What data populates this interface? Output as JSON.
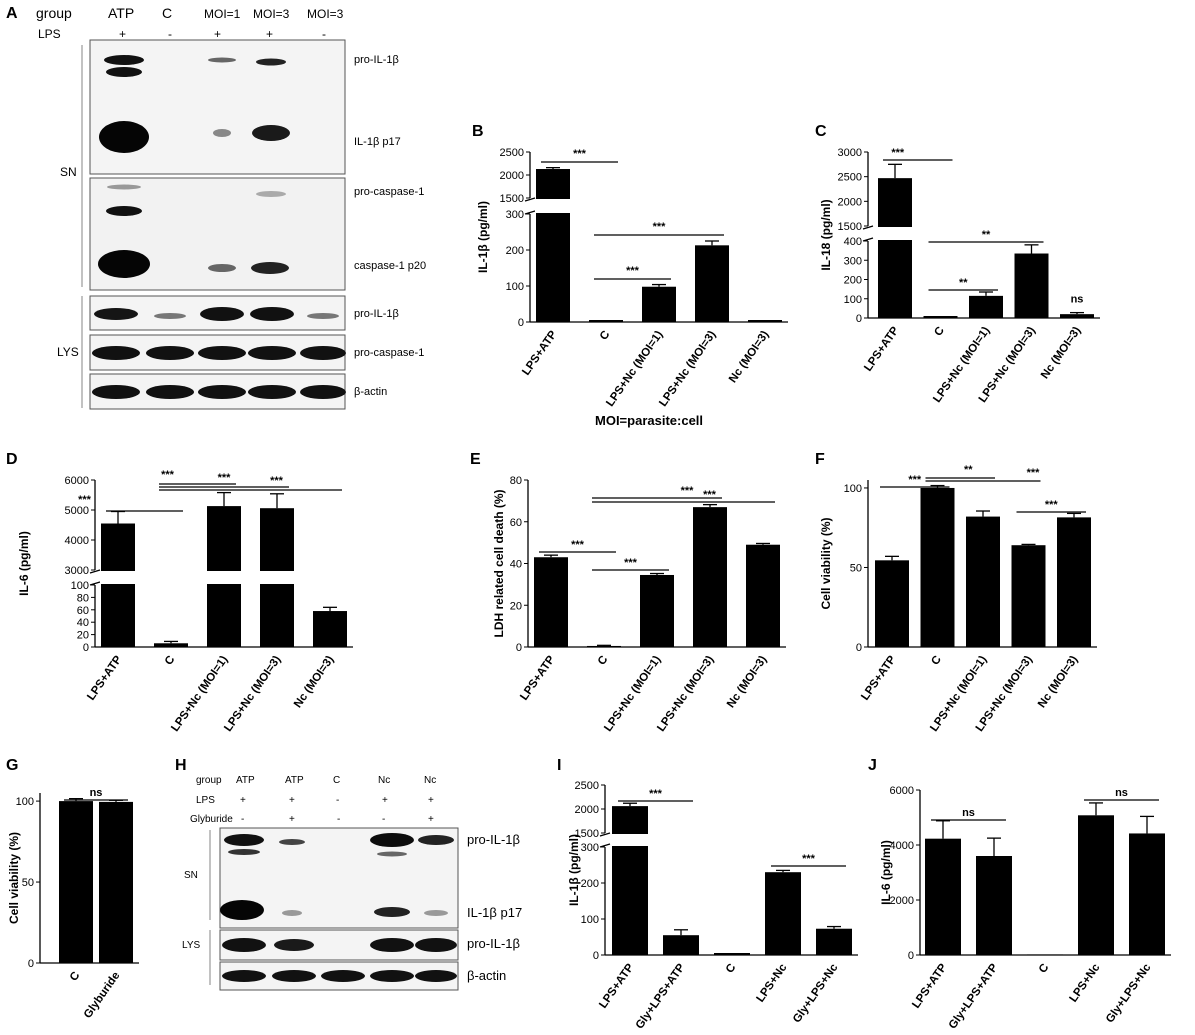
{
  "panel_letters": [
    "A",
    "B",
    "C",
    "D",
    "E",
    "F",
    "G",
    "H",
    "I",
    "J"
  ],
  "footer_note": "MOI=parasite:cell",
  "blot_A": {
    "header_rows": [
      {
        "label": "group",
        "cells": [
          "ATP",
          "C",
          "MOI=1",
          "MOI=3",
          "MOI=3"
        ]
      },
      {
        "label": "LPS",
        "cells": [
          "+",
          "-",
          "+",
          "+",
          "-"
        ]
      }
    ],
    "groups": [
      "SN",
      "LYS"
    ],
    "band_labels": [
      "pro-IL-1β",
      "IL-1β p17",
      "pro-caspase-1",
      "caspase-1 p20",
      "pro-IL-1β",
      "pro-caspase-1",
      "β-actin"
    ]
  },
  "blot_H": {
    "header_rows": [
      {
        "label": "group",
        "cells": [
          "ATP",
          "ATP",
          "C",
          "Nc",
          "Nc"
        ]
      },
      {
        "label": "LPS",
        "cells": [
          "+",
          "+",
          "-",
          "+",
          "+"
        ]
      },
      {
        "label": "Glyburide",
        "cells": [
          "-",
          "+",
          "-",
          "-",
          "+"
        ]
      }
    ],
    "groups": [
      "SN",
      "LYS"
    ],
    "band_labels": [
      "pro-IL-1β",
      "IL-1β p17",
      "pro-IL-1β",
      "β-actin"
    ]
  },
  "chart_data": [
    {
      "panel": "B",
      "type": "bar",
      "ylabel": "IL-1β (pg/ml)",
      "categories": [
        "LPS+ATP",
        "C",
        "LPS+Nc (MOI=1)",
        "LPS+Nc (MOI=3)",
        "Nc (MOI=3)"
      ],
      "values": [
        2130,
        0,
        98,
        213,
        0
      ],
      "errors": [
        30,
        0,
        6,
        12,
        0
      ],
      "axis": {
        "lower": [
          0,
          300
        ],
        "upper": [
          1500,
          2500
        ],
        "lower_ticks": [
          "0",
          "100",
          "200",
          "300"
        ],
        "upper_ticks": [
          "1500",
          "2000",
          "2500"
        ],
        "lower_tick_values": [
          0,
          100,
          200,
          300
        ],
        "upper_tick_values": [
          1500,
          2000,
          2500
        ]
      },
      "significance": [
        {
          "from": 0,
          "to": 1,
          "label": "***"
        },
        {
          "from": 1,
          "to": 3,
          "label": "***"
        },
        {
          "from": 1,
          "to": 2,
          "label": "***"
        }
      ]
    },
    {
      "panel": "C",
      "type": "bar",
      "ylabel": "IL-18 (pg/ml)",
      "categories": [
        "LPS+ATP",
        "C",
        "LPS+Nc (MOI=1)",
        "LPS+Nc (MOI=3)",
        "Nc (MOI=3)"
      ],
      "values": [
        2470,
        0,
        115,
        335,
        20
      ],
      "errors": [
        280,
        0,
        20,
        45,
        8
      ],
      "axis": {
        "lower": [
          0,
          400
        ],
        "upper": [
          1500,
          3000
        ],
        "lower_ticks": [
          "0",
          "100",
          "200",
          "300",
          "400"
        ],
        "upper_ticks": [
          "1500",
          "2000",
          "2500",
          "3000"
        ],
        "lower_tick_values": [
          0,
          100,
          200,
          300,
          400
        ],
        "upper_tick_values": [
          1500,
          2000,
          2500,
          3000
        ]
      },
      "significance": [
        {
          "from": 0,
          "to": 1,
          "label": "***"
        },
        {
          "from": 1,
          "to": 3,
          "label": "**"
        },
        {
          "from": 1,
          "to": 2,
          "label": "**"
        },
        {
          "single": 4,
          "label": "ns"
        }
      ]
    },
    {
      "panel": "D",
      "type": "bar",
      "ylabel": "IL-6 (pg/ml)",
      "categories": [
        "LPS+ATP",
        "C",
        "LPS+Nc (MOI=1)",
        "LPS+Nc (MOI=3)",
        "Nc (MOI=3)"
      ],
      "values": [
        4550,
        6,
        5130,
        5060,
        58
      ],
      "errors": [
        400,
        3,
        450,
        480,
        6
      ],
      "axis": {
        "lower": [
          0,
          100
        ],
        "upper": [
          3000,
          6000
        ],
        "lower_ticks": [
          "0",
          "20",
          "40",
          "60",
          "80",
          "100"
        ],
        "upper_ticks": [
          "3000",
          "4000",
          "5000",
          "6000"
        ],
        "lower_tick_values": [
          0,
          20,
          40,
          60,
          80,
          100
        ],
        "upper_tick_values": [
          3000,
          4000,
          5000,
          6000
        ]
      },
      "significance": [
        {
          "from": 0,
          "to": 1,
          "label": "***"
        },
        {
          "from": 1,
          "to": 2,
          "label": "***"
        },
        {
          "from": 1,
          "to": 3,
          "label": "***"
        },
        {
          "from": 1,
          "to": 4,
          "label": "***"
        }
      ]
    },
    {
      "panel": "E",
      "type": "bar",
      "ylabel": "LDH related cell death (%)",
      "categories": [
        "LPS+ATP",
        "C",
        "LPS+Nc (MOI=1)",
        "LPS+Nc (MOI=3)",
        "Nc (MOI=3)"
      ],
      "values": [
        43,
        0.5,
        34.5,
        67,
        49
      ],
      "errors": [
        1,
        0.3,
        0.7,
        1.2,
        0.6
      ],
      "ylim": [
        0,
        80
      ],
      "ticks": [
        "0",
        "20",
        "40",
        "60",
        "80"
      ],
      "tick_values": [
        0,
        20,
        40,
        60,
        80
      ],
      "significance": [
        {
          "from": 0,
          "to": 1,
          "label": "***"
        },
        {
          "from": 1,
          "to": 2,
          "label": "***"
        },
        {
          "from": 1,
          "to": 3,
          "label": "***"
        },
        {
          "from": 1,
          "to": 4,
          "label": "***"
        }
      ]
    },
    {
      "panel": "F",
      "type": "bar",
      "ylabel": "Cell viability (%)",
      "categories": [
        "LPS+ATP",
        "C",
        "LPS+Nc (MOI=1)",
        "LPS+Nc (MOI=3)",
        "Nc (MOI=3)"
      ],
      "values": [
        54.5,
        100,
        82,
        64,
        81.5
      ],
      "errors": [
        2.5,
        1.5,
        3.5,
        0.5,
        2.5
      ],
      "ylim": [
        0,
        105
      ],
      "ticks": [
        "0",
        "50",
        "100"
      ],
      "tick_values": [
        0,
        50,
        100
      ],
      "significance": [
        {
          "from": 0,
          "to": 1,
          "label": "***"
        },
        {
          "from": 1,
          "to": 2,
          "label": "**"
        },
        {
          "from": 1,
          "to": 3,
          "label": "***"
        },
        {
          "from": 3,
          "to": 4,
          "label": "***"
        }
      ]
    },
    {
      "panel": "G",
      "type": "bar",
      "ylabel": "Cell viability (%)",
      "categories": [
        "C",
        "Glyburide"
      ],
      "values": [
        100,
        99.5
      ],
      "errors": [
        1.5,
        1
      ],
      "ylim": [
        0,
        105
      ],
      "ticks": [
        "0",
        "50",
        "100"
      ],
      "tick_values": [
        0,
        50,
        100
      ],
      "significance": [
        {
          "from": 0,
          "to": 1,
          "label": "ns"
        }
      ]
    },
    {
      "panel": "I",
      "type": "bar",
      "ylabel": "IL-1β (pg/ml)",
      "categories": [
        "LPS+ATP",
        "Gly+LPS+ATP",
        "C",
        "LPS+Nc",
        "Gly+LPS+Nc"
      ],
      "values": [
        2060,
        55,
        0,
        230,
        73
      ],
      "errors": [
        60,
        15,
        0,
        5,
        6
      ],
      "axis": {
        "lower": [
          0,
          300
        ],
        "upper": [
          1500,
          2500
        ],
        "lower_ticks": [
          "0",
          "100",
          "200",
          "300"
        ],
        "upper_ticks": [
          "1500",
          "2000",
          "2500"
        ],
        "lower_tick_values": [
          0,
          100,
          200,
          300
        ],
        "upper_tick_values": [
          1500,
          2000,
          2500
        ]
      },
      "significance": [
        {
          "from": 0,
          "to": 1,
          "label": "***"
        },
        {
          "from": 3,
          "to": 4,
          "label": "***"
        }
      ]
    },
    {
      "panel": "J",
      "type": "bar",
      "ylabel": "IL-6 (pg/ml)",
      "categories": [
        "LPS+ATP",
        "Gly+LPS+ATP",
        "C",
        "LPS+Nc",
        "Gly+LPS+Nc"
      ],
      "values": [
        4230,
        3600,
        20,
        5080,
        4420
      ],
      "errors": [
        650,
        650,
        0,
        450,
        620
      ],
      "ylim": [
        0,
        6000
      ],
      "ticks": [
        "0",
        "2000",
        "4000",
        "6000"
      ],
      "tick_values": [
        0,
        2000,
        4000,
        6000
      ],
      "significance": [
        {
          "from": 0,
          "to": 1,
          "label": "ns"
        },
        {
          "from": 3,
          "to": 4,
          "label": "ns"
        }
      ]
    }
  ]
}
